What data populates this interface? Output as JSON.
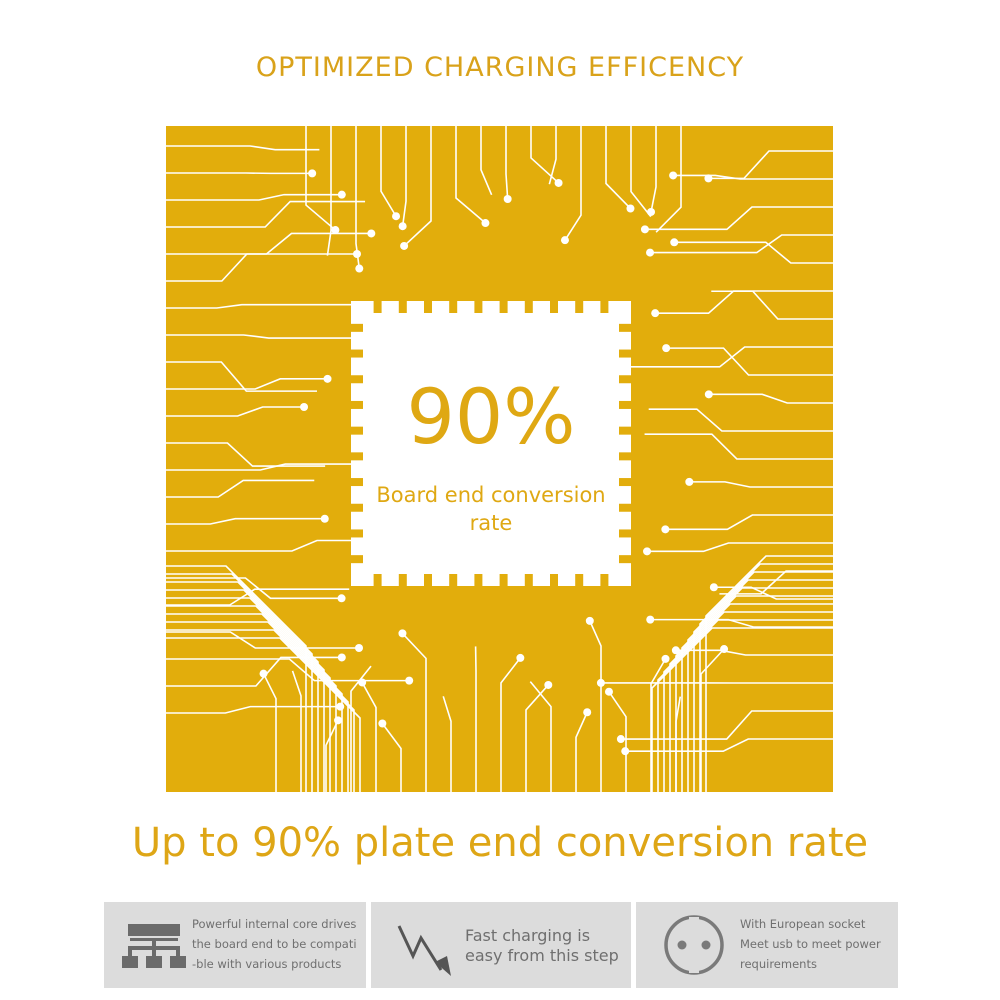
{
  "title": "OPTIMIZED CHARGING EFFICENCY",
  "chip": {
    "value": "90%",
    "caption_line1": "Board end conversion",
    "caption_line2": "rate"
  },
  "headline": "Up to 90% plate end conversion rate",
  "features": [
    {
      "icon": "hierarchy-icon",
      "lines": [
        "Powerful internal core drives",
        "the board end to be compati",
        "-ble with various products"
      ]
    },
    {
      "icon": "lightning-icon",
      "lines": [
        "Fast charging is",
        "easy from this step"
      ]
    },
    {
      "icon": "european-socket-icon",
      "lines": [
        "With European socket",
        "Meet usb to meet power",
        "requirements"
      ]
    }
  ],
  "colors": {
    "accent": "#e2ad0c",
    "title": "#d9a21a",
    "feature_bg": "#dcdcdc",
    "feature_text": "#6f6f6f"
  }
}
